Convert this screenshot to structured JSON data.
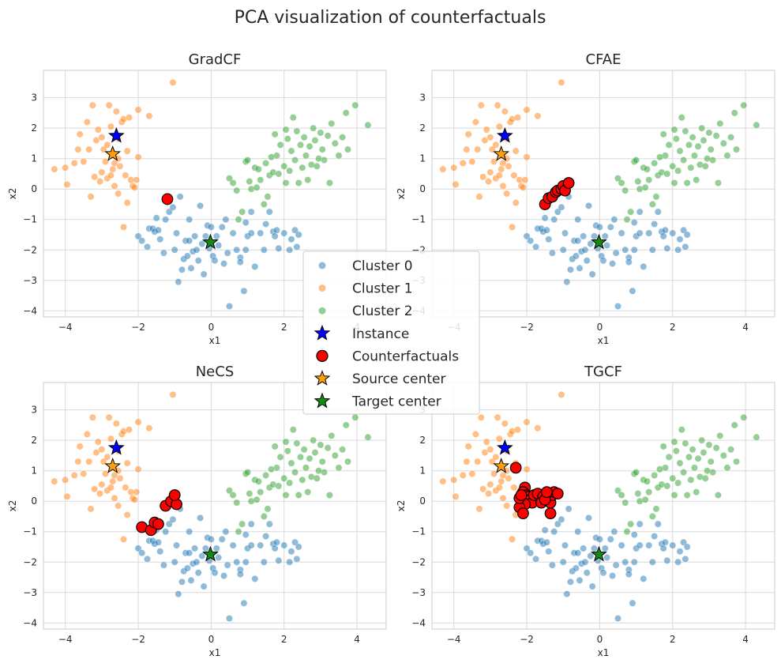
{
  "figure_title": "PCA visualization of counterfactuals",
  "colors": {
    "cluster0": "#1f77b4",
    "cluster1": "#ff7f0e",
    "cluster2": "#2ca02c",
    "instance": "#0000ff",
    "counterfactual": "#ff0000",
    "source_center": "#ff9f0e",
    "target_center": "#138a13",
    "grid": "#d9d9d9",
    "frame": "#cccccc"
  },
  "legend": {
    "placement": "center",
    "items": [
      {
        "label": "Cluster 0",
        "marker": "dot",
        "color": "#1f77b4"
      },
      {
        "label": "Cluster 1",
        "marker": "dot",
        "color": "#ff7f0e"
      },
      {
        "label": "Cluster 2",
        "marker": "dot",
        "color": "#2ca02c"
      },
      {
        "label": "Instance",
        "marker": "star",
        "color": "#0000ff"
      },
      {
        "label": "Counterfactuals",
        "marker": "circle",
        "color": "#ff0000"
      },
      {
        "label": "Source center",
        "marker": "star",
        "color": "#ff9f0e"
      },
      {
        "label": "Target center",
        "marker": "star",
        "color": "#138a13"
      }
    ]
  },
  "chart_data": [
    {
      "type": "scatter",
      "title": "GradCF",
      "xlabel": "x1",
      "ylabel": "x2",
      "xlim": [
        -4.6,
        4.8
      ],
      "ylim": [
        -4.2,
        3.9
      ],
      "xticks": [
        -4,
        -2,
        0,
        2,
        4
      ],
      "yticks": [
        -4,
        -3,
        -2,
        -1,
        0,
        1,
        2,
        3
      ],
      "grid": true,
      "counterfactuals": [
        [
          -1.2,
          -0.33
        ]
      ]
    },
    {
      "type": "scatter",
      "title": "CFAE",
      "xlabel": "x1",
      "ylabel": "x2",
      "xlim": [
        -4.6,
        4.8
      ],
      "ylim": [
        -4.2,
        3.9
      ],
      "xticks": [
        -4,
        -2,
        0,
        2,
        4
      ],
      "yticks": [
        -4,
        -3,
        -2,
        -1,
        0,
        1,
        2,
        3
      ],
      "grid": true,
      "counterfactuals": [
        [
          -1.5,
          -0.5
        ],
        [
          -1.4,
          -0.3
        ],
        [
          -1.3,
          -0.25
        ],
        [
          -1.2,
          -0.1
        ],
        [
          -1.15,
          -0.05
        ],
        [
          -1.05,
          0.0
        ],
        [
          -1.0,
          0.1
        ],
        [
          -0.95,
          -0.05
        ],
        [
          -0.85,
          0.2
        ]
      ]
    },
    {
      "type": "scatter",
      "title": "NeCS",
      "xlabel": "x1",
      "ylabel": "x2",
      "xlim": [
        -4.6,
        4.8
      ],
      "ylim": [
        -4.2,
        3.9
      ],
      "xticks": [
        -4,
        -2,
        0,
        2,
        4
      ],
      "yticks": [
        -4,
        -3,
        -2,
        -1,
        0,
        1,
        2,
        3
      ],
      "grid": true,
      "counterfactuals": [
        [
          -1.9,
          -0.85
        ],
        [
          -1.65,
          -0.95
        ],
        [
          -1.55,
          -0.7
        ],
        [
          -1.45,
          -0.75
        ],
        [
          -1.25,
          -0.15
        ],
        [
          -1.1,
          0.0
        ],
        [
          -0.95,
          -0.1
        ],
        [
          -1.0,
          0.2
        ]
      ]
    },
    {
      "type": "scatter",
      "title": "TGCF",
      "xlabel": "x1",
      "ylabel": "x2",
      "xlim": [
        -4.6,
        4.8
      ],
      "ylim": [
        -4.2,
        3.9
      ],
      "xticks": [
        -4,
        -2,
        0,
        2,
        4
      ],
      "yticks": [
        -4,
        -3,
        -2,
        -1,
        0,
        1,
        2,
        3
      ],
      "grid": true,
      "counterfactuals": [
        [
          -2.3,
          1.1
        ],
        [
          -2.05,
          0.45
        ],
        [
          -2.1,
          0.3
        ],
        [
          -2.0,
          0.2
        ],
        [
          -1.95,
          0.15
        ],
        [
          -1.9,
          0.05
        ],
        [
          -1.85,
          -0.05
        ],
        [
          -2.05,
          -0.1
        ],
        [
          -2.2,
          -0.2
        ],
        [
          -2.1,
          -0.4
        ],
        [
          -1.8,
          0.2
        ],
        [
          -1.7,
          0.25
        ],
        [
          -1.55,
          0.15
        ],
        [
          -1.45,
          0.1
        ],
        [
          -1.35,
          -0.05
        ],
        [
          -1.3,
          0.2
        ],
        [
          -1.6,
          -0.05
        ],
        [
          -1.5,
          0.05
        ],
        [
          -1.25,
          0.3
        ],
        [
          -1.45,
          0.3
        ],
        [
          -1.35,
          -0.4
        ],
        [
          -1.15,
          0.25
        ],
        [
          -2.2,
          0.1
        ],
        [
          -2.15,
          0.2
        ]
      ]
    }
  ],
  "shared_series": {
    "instance": [
      -2.6,
      1.75
    ],
    "source_center": [
      -2.7,
      1.15
    ],
    "target_center": [
      -0.02,
      -1.75
    ],
    "cluster0": [
      [
        -2.0,
        -1.55
      ],
      [
        -1.9,
        -1.7
      ],
      [
        -1.75,
        -1.9
      ],
      [
        -1.7,
        -1.3
      ],
      [
        -1.6,
        -1.3
      ],
      [
        -1.55,
        -1.4
      ],
      [
        -1.5,
        -0.95
      ],
      [
        -1.45,
        -1.35
      ],
      [
        -1.4,
        -1.65
      ],
      [
        -1.3,
        -2.1
      ],
      [
        -1.25,
        -1.0
      ],
      [
        -1.15,
        -0.75
      ],
      [
        -1.05,
        -0.6
      ],
      [
        -1.0,
        -2.0
      ],
      [
        -0.95,
        -1.45
      ],
      [
        -0.9,
        -3.05
      ],
      [
        -0.85,
        -0.25
      ],
      [
        -0.8,
        -2.65
      ],
      [
        -0.75,
        -2.3
      ],
      [
        -0.7,
        -1.7
      ],
      [
        -0.65,
        -2.2
      ],
      [
        -0.6,
        -1.0
      ],
      [
        -0.55,
        -2.6
      ],
      [
        -0.5,
        -2.05
      ],
      [
        -0.45,
        -1.55
      ],
      [
        -0.4,
        -2.0
      ],
      [
        -0.35,
        -2.35
      ],
      [
        -0.3,
        -0.55
      ],
      [
        -0.25,
        -1.8
      ],
      [
        -0.2,
        -2.8
      ],
      [
        -0.15,
        -1.55
      ],
      [
        -0.1,
        -1.2
      ],
      [
        -0.05,
        -1.95
      ],
      [
        0.0,
        -1.25
      ],
      [
        0.05,
        -2.2
      ],
      [
        0.1,
        -2.35
      ],
      [
        0.15,
        -1.55
      ],
      [
        0.2,
        -1.85
      ],
      [
        0.3,
        -1.25
      ],
      [
        0.4,
        -1.0
      ],
      [
        0.45,
        -2.1
      ],
      [
        0.5,
        -3.85
      ],
      [
        0.6,
        -1.45
      ],
      [
        0.7,
        -2.0
      ],
      [
        0.8,
        -2.25
      ],
      [
        0.8,
        -2.4
      ],
      [
        0.9,
        -3.35
      ],
      [
        0.95,
        -2.0
      ],
      [
        1.0,
        -1.55
      ],
      [
        1.1,
        -0.75
      ],
      [
        1.1,
        -1.45
      ],
      [
        1.2,
        -2.55
      ],
      [
        1.35,
        -1.45
      ],
      [
        1.45,
        -2.0
      ],
      [
        1.6,
        -0.75
      ],
      [
        1.7,
        -1.4
      ],
      [
        1.75,
        -1.55
      ],
      [
        1.8,
        -1.35
      ],
      [
        2.0,
        -1.45
      ],
      [
        2.2,
        -1.65
      ],
      [
        2.3,
        -1.35
      ],
      [
        2.35,
        -1.9
      ],
      [
        2.4,
        -1.5
      ],
      [
        2.15,
        -2.0
      ],
      [
        1.85,
        -1.95
      ],
      [
        0.35,
        -2.45
      ],
      [
        -0.6,
        -1.7
      ],
      [
        1.5,
        -1.15
      ],
      [
        0.95,
        -1.1
      ]
    ],
    "cluster1": [
      [
        -4.3,
        0.65
      ],
      [
        -4.0,
        0.7
      ],
      [
        -3.95,
        0.15
      ],
      [
        -3.75,
        0.85
      ],
      [
        -3.65,
        1.3
      ],
      [
        -3.6,
        1.8
      ],
      [
        -3.5,
        0.9
      ],
      [
        -3.4,
        2.2
      ],
      [
        -3.35,
        1.3
      ],
      [
        -3.25,
        2.75
      ],
      [
        -3.3,
        -0.25
      ],
      [
        -3.2,
        0.4
      ],
      [
        -3.15,
        1.6
      ],
      [
        -3.1,
        1.95
      ],
      [
        -3.05,
        0.25
      ],
      [
        -3.0,
        0.55
      ],
      [
        -2.95,
        1.3
      ],
      [
        -2.9,
        0.9
      ],
      [
        -2.85,
        0.35
      ],
      [
        -2.8,
        2.75
      ],
      [
        -2.75,
        2.05
      ],
      [
        -2.7,
        0.65
      ],
      [
        -2.65,
        0.1
      ],
      [
        -2.6,
        2.55
      ],
      [
        -2.55,
        1.65
      ],
      [
        -2.5,
        0.75
      ],
      [
        -2.45,
        2.2
      ],
      [
        -2.4,
        2.3
      ],
      [
        -2.35,
        0.45
      ],
      [
        -2.3,
        1.25
      ],
      [
        -2.25,
        2.35
      ],
      [
        -2.2,
        0.3
      ],
      [
        -2.15,
        0.1
      ],
      [
        -2.1,
        0.05
      ],
      [
        -2.05,
        0.3
      ],
      [
        -2.0,
        1.05
      ],
      [
        -2.0,
        2.6
      ],
      [
        -2.3,
        -0.45
      ],
      [
        -2.4,
        -1.25
      ],
      [
        -2.55,
        -0.15
      ],
      [
        -1.7,
        2.4
      ],
      [
        -1.05,
        3.5
      ],
      [
        -2.75,
        0.45
      ],
      [
        -3.0,
        1.7
      ],
      [
        -2.85,
        1.45
      ],
      [
        -2.55,
        1.0
      ],
      [
        -2.65,
        0.85
      ]
    ],
    "cluster2": [
      [
        0.5,
        0.35
      ],
      [
        0.6,
        0.2
      ],
      [
        0.7,
        -0.05
      ],
      [
        0.85,
        -0.75
      ],
      [
        0.95,
        0.9
      ],
      [
        1.05,
        0.25
      ],
      [
        1.1,
        0.0
      ],
      [
        1.2,
        0.7
      ],
      [
        1.25,
        0.05
      ],
      [
        1.35,
        0.3
      ],
      [
        1.45,
        -0.5
      ],
      [
        1.5,
        0.85
      ],
      [
        1.55,
        -0.25
      ],
      [
        1.6,
        0.45
      ],
      [
        1.7,
        0.55
      ],
      [
        1.75,
        1.8
      ],
      [
        1.8,
        1.1
      ],
      [
        1.9,
        1.45
      ],
      [
        2.0,
        0.75
      ],
      [
        2.05,
        0.2
      ],
      [
        2.1,
        1.65
      ],
      [
        2.15,
        0.6
      ],
      [
        2.2,
        1.25
      ],
      [
        2.25,
        2.35
      ],
      [
        2.3,
        0.95
      ],
      [
        2.35,
        1.9
      ],
      [
        2.4,
        0.2
      ],
      [
        2.45,
        1.45
      ],
      [
        2.5,
        0.7
      ],
      [
        2.55,
        1.7
      ],
      [
        2.6,
        1.1
      ],
      [
        2.65,
        0.3
      ],
      [
        2.7,
        1.4
      ],
      [
        2.75,
        0.8
      ],
      [
        2.8,
        2.0
      ],
      [
        2.85,
        1.6
      ],
      [
        2.9,
        0.75
      ],
      [
        3.0,
        1.85
      ],
      [
        3.05,
        1.3
      ],
      [
        3.1,
        0.95
      ],
      [
        3.2,
        1.75
      ],
      [
        3.3,
        2.15
      ],
      [
        3.4,
        1.5
      ],
      [
        3.5,
        1.1
      ],
      [
        3.6,
        1.7
      ],
      [
        3.7,
        2.5
      ],
      [
        3.75,
        1.3
      ],
      [
        3.95,
        2.75
      ],
      [
        4.3,
        2.1
      ],
      [
        1.0,
        0.95
      ],
      [
        1.3,
        0.65
      ],
      [
        1.65,
        1.05
      ],
      [
        2.05,
        1.95
      ],
      [
        2.95,
        1.0
      ],
      [
        1.85,
        0.5
      ],
      [
        0.75,
        -1.0
      ],
      [
        3.25,
        0.2
      ]
    ]
  }
}
